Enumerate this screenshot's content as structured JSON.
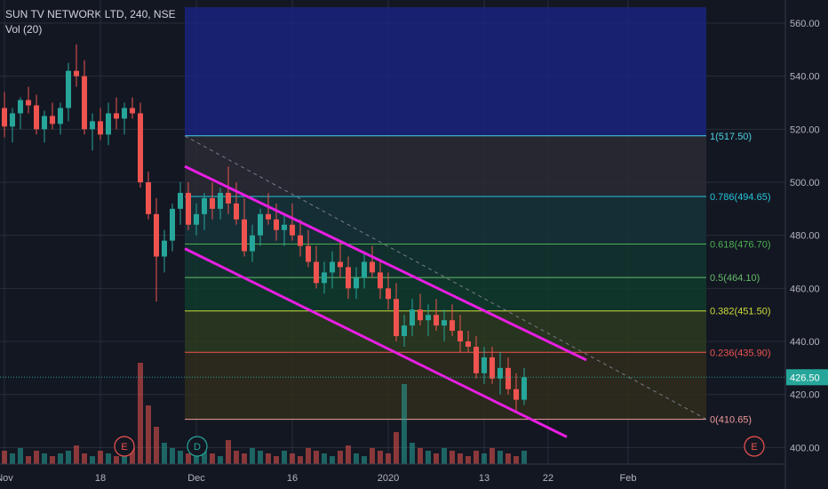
{
  "header": {
    "symbol_line": "SUN TV NETWORK LTD, 240, NSE",
    "volume_label": "Vol (20)"
  },
  "colors": {
    "background": "#131722",
    "up": "#26a69a",
    "down": "#ef5350",
    "channel": "#e91ee3",
    "axis_text": "#b2b5be",
    "price_badge": "#26a69a",
    "fib_top_zone": "#1a237e"
  },
  "price_badge": "426.50",
  "chart_data": {
    "type": "candlestick",
    "title": "SUN TV NETWORK LTD, 240, NSE",
    "y_axis": {
      "ticks": [
        "400.00",
        "420.00",
        "440.00",
        "460.00",
        "480.00",
        "500.00",
        "520.00",
        "540.00",
        "560.00"
      ],
      "range": [
        396,
        566
      ]
    },
    "x_axis": {
      "ticks": [
        "Nov",
        "18",
        "Dec",
        "16",
        "2020",
        "13",
        "22",
        "Feb"
      ],
      "tick_index": [
        0,
        12,
        24,
        36,
        48,
        60,
        68,
        78
      ]
    },
    "last_price": 426.5,
    "candles": [
      [
        528,
        534,
        517,
        521
      ],
      [
        521,
        528,
        515,
        526
      ],
      [
        526,
        532,
        520,
        531
      ],
      [
        531,
        536,
        526,
        529
      ],
      [
        529,
        533,
        518,
        520
      ],
      [
        520,
        527,
        515,
        525
      ],
      [
        525,
        530,
        520,
        522
      ],
      [
        522,
        530,
        518,
        528
      ],
      [
        528,
        545,
        523,
        542
      ],
      [
        542,
        552,
        536,
        540
      ],
      [
        540,
        546,
        518,
        520
      ],
      [
        520,
        526,
        512,
        523
      ],
      [
        523,
        528,
        516,
        518
      ],
      [
        518,
        530,
        514,
        526
      ],
      [
        526,
        532,
        520,
        524
      ],
      [
        524,
        530,
        518,
        528
      ],
      [
        528,
        532,
        524,
        526
      ],
      [
        526,
        530,
        498,
        500
      ],
      [
        500,
        504,
        486,
        488
      ],
      [
        488,
        494,
        455,
        472
      ],
      [
        472,
        482,
        466,
        478
      ],
      [
        478,
        492,
        474,
        490
      ],
      [
        490,
        500,
        484,
        496
      ],
      [
        496,
        500,
        482,
        484
      ],
      [
        484,
        492,
        480,
        488
      ],
      [
        488,
        496,
        482,
        494
      ],
      [
        494,
        500,
        486,
        490
      ],
      [
        490,
        498,
        486,
        496
      ],
      [
        496,
        506,
        488,
        492
      ],
      [
        492,
        500,
        484,
        486
      ],
      [
        486,
        494,
        472,
        474
      ],
      [
        474,
        484,
        470,
        480
      ],
      [
        480,
        490,
        476,
        488
      ],
      [
        488,
        496,
        484,
        486
      ],
      [
        486,
        492,
        478,
        482
      ],
      [
        482,
        488,
        476,
        484
      ],
      [
        484,
        492,
        478,
        480
      ],
      [
        480,
        486,
        472,
        476
      ],
      [
        476,
        482,
        468,
        470
      ],
      [
        470,
        476,
        460,
        462
      ],
      [
        462,
        470,
        458,
        466
      ],
      [
        466,
        474,
        460,
        470
      ],
      [
        470,
        478,
        464,
        468
      ],
      [
        468,
        472,
        456,
        460
      ],
      [
        460,
        468,
        456,
        464
      ],
      [
        464,
        474,
        460,
        470
      ],
      [
        470,
        476,
        464,
        466
      ],
      [
        466,
        470,
        456,
        460
      ],
      [
        460,
        466,
        452,
        456
      ],
      [
        456,
        462,
        440,
        442
      ],
      [
        442,
        450,
        438,
        446
      ],
      [
        446,
        456,
        442,
        452
      ],
      [
        452,
        458,
        446,
        448
      ],
      [
        448,
        454,
        442,
        450
      ],
      [
        450,
        456,
        444,
        446
      ],
      [
        446,
        452,
        440,
        448
      ],
      [
        448,
        454,
        442,
        444
      ],
      [
        444,
        450,
        436,
        440
      ],
      [
        440,
        444,
        436,
        438
      ],
      [
        438,
        442,
        426,
        428
      ],
      [
        428,
        438,
        424,
        434
      ],
      [
        434,
        438,
        424,
        426
      ],
      [
        426,
        436,
        420,
        430
      ],
      [
        430,
        434,
        420,
        422
      ],
      [
        422,
        428,
        414,
        418
      ],
      [
        418,
        430,
        416,
        426.5
      ]
    ],
    "volumes": [
      5,
      4,
      6,
      3,
      5,
      4,
      3,
      4,
      5,
      7,
      4,
      3,
      5,
      4,
      3,
      4,
      6,
      38,
      22,
      14,
      8,
      6,
      5,
      4,
      6,
      5,
      4,
      3,
      9,
      5,
      4,
      6,
      5,
      4,
      3,
      5,
      4,
      3,
      6,
      5,
      4,
      3,
      5,
      7,
      4,
      3,
      6,
      5,
      4,
      12,
      30,
      8,
      6,
      5,
      4,
      6,
      5,
      4,
      3,
      5,
      4,
      6,
      5,
      4,
      3,
      5
    ],
    "fibonacci": {
      "levels": [
        {
          "ratio": "1",
          "price": 517.5,
          "label": "1(517.50)"
        },
        {
          "ratio": "0.786",
          "price": 494.65,
          "label": "0.786(494.65)"
        },
        {
          "ratio": "0.618",
          "price": 476.7,
          "label": "0.618(476.70)"
        },
        {
          "ratio": "0.5",
          "price": 464.1,
          "label": "0.5(464.10)"
        },
        {
          "ratio": "0.382",
          "price": 451.5,
          "label": "0.382(451.50)"
        },
        {
          "ratio": "0.236",
          "price": 435.9,
          "label": "0.236(435.90)"
        },
        {
          "ratio": "0",
          "price": 410.65,
          "label": "0(410.65)"
        }
      ],
      "top_price": 566
    },
    "channel": {
      "upper": [
        [
          506,
          433
        ]
      ],
      "lower": [
        [
          475,
          404
        ]
      ]
    },
    "event_markers": [
      {
        "label": "E",
        "kind": "earnings"
      },
      {
        "label": "D",
        "kind": "dividend"
      },
      {
        "label": "E",
        "kind": "earnings"
      }
    ]
  }
}
